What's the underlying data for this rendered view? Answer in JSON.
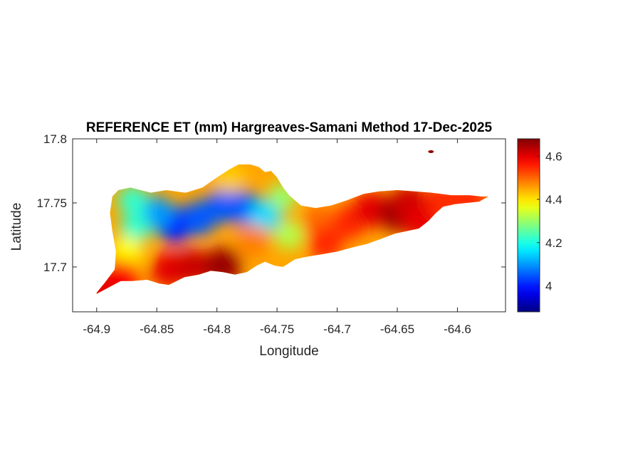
{
  "chart_data": {
    "type": "heatmap",
    "title": "REFERENCE ET (mm) Hargreaves-Samani Method  17-Dec-2025",
    "xlabel": "Longitude",
    "ylabel": "Latitude",
    "xlim": [
      -64.92,
      -64.56
    ],
    "ylim": [
      17.665,
      17.8
    ],
    "xticks": [
      -64.9,
      -64.85,
      -64.8,
      -64.75,
      -64.7,
      -64.65,
      -64.6
    ],
    "xtick_labels": [
      "-64.9",
      "-64.85",
      "-64.8",
      "-64.75",
      "-64.7",
      "-64.65",
      "-64.6"
    ],
    "yticks": [
      17.7,
      17.75,
      17.8
    ],
    "ytick_labels": [
      "17.7",
      "17.75",
      "17.8"
    ],
    "colorbar": {
      "colormap": "jet",
      "range": [
        3.88,
        4.68
      ],
      "ticks": [
        4.0,
        4.2,
        4.4,
        4.6
      ],
      "tick_labels": [
        "4",
        "4.2",
        "4.4",
        "4.6"
      ]
    },
    "island_outline_lonlat": [
      [
        -64.9,
        17.68
      ],
      [
        -64.893,
        17.688
      ],
      [
        -64.885,
        17.698
      ],
      [
        -64.884,
        17.712
      ],
      [
        -64.887,
        17.728
      ],
      [
        -64.889,
        17.742
      ],
      [
        -64.887,
        17.755
      ],
      [
        -64.882,
        17.76
      ],
      [
        -64.872,
        17.762
      ],
      [
        -64.855,
        17.758
      ],
      [
        -64.842,
        17.76
      ],
      [
        -64.826,
        17.758
      ],
      [
        -64.812,
        17.762
      ],
      [
        -64.803,
        17.768
      ],
      [
        -64.79,
        17.776
      ],
      [
        -64.782,
        17.78
      ],
      [
        -64.772,
        17.78
      ],
      [
        -64.765,
        17.778
      ],
      [
        -64.76,
        17.774
      ],
      [
        -64.755,
        17.775
      ],
      [
        -64.75,
        17.77
      ],
      [
        -64.745,
        17.762
      ],
      [
        -64.74,
        17.756
      ],
      [
        -64.73,
        17.748
      ],
      [
        -64.718,
        17.746
      ],
      [
        -64.705,
        17.748
      ],
      [
        -64.692,
        17.752
      ],
      [
        -64.678,
        17.757
      ],
      [
        -64.665,
        17.759
      ],
      [
        -64.65,
        17.76
      ],
      [
        -64.636,
        17.759
      ],
      [
        -64.622,
        17.758
      ],
      [
        -64.605,
        17.756
      ],
      [
        -64.59,
        17.756
      ],
      [
        -64.58,
        17.755
      ],
      [
        -64.574,
        17.755
      ],
      [
        -64.582,
        17.751
      ],
      [
        -64.592,
        17.75
      ],
      [
        -64.602,
        17.749
      ],
      [
        -64.612,
        17.747
      ],
      [
        -64.618,
        17.742
      ],
      [
        -64.624,
        17.736
      ],
      [
        -64.632,
        17.73
      ],
      [
        -64.642,
        17.728
      ],
      [
        -64.652,
        17.726
      ],
      [
        -64.663,
        17.722
      ],
      [
        -64.675,
        17.718
      ],
      [
        -64.688,
        17.715
      ],
      [
        -64.7,
        17.712
      ],
      [
        -64.712,
        17.71
      ],
      [
        -64.725,
        17.708
      ],
      [
        -64.735,
        17.706
      ],
      [
        -64.745,
        17.7
      ],
      [
        -64.752,
        17.701
      ],
      [
        -64.76,
        17.704
      ],
      [
        -64.767,
        17.701
      ],
      [
        -64.775,
        17.696
      ],
      [
        -64.785,
        17.694
      ],
      [
        -64.795,
        17.696
      ],
      [
        -64.805,
        17.697
      ],
      [
        -64.815,
        17.694
      ],
      [
        -64.827,
        17.692
      ],
      [
        -64.84,
        17.686
      ],
      [
        -64.848,
        17.687
      ],
      [
        -64.858,
        17.69
      ],
      [
        -64.87,
        17.689
      ],
      [
        -64.88,
        17.689
      ],
      [
        -64.89,
        17.684
      ],
      [
        -64.9,
        17.679
      ]
    ],
    "island_islet_lonlat": [
      -64.622,
      17.79
    ],
    "value_blobs_lonlat": [
      {
        "lon": -64.835,
        "lat": 17.733,
        "value": 3.98
      },
      {
        "lon": -64.815,
        "lat": 17.738,
        "value": 4.05
      },
      {
        "lon": -64.795,
        "lat": 17.748,
        "value": 4.05
      },
      {
        "lon": -64.778,
        "lat": 17.746,
        "value": 4.05
      },
      {
        "lon": -64.85,
        "lat": 17.742,
        "value": 4.1
      },
      {
        "lon": -64.76,
        "lat": 17.74,
        "value": 4.15
      },
      {
        "lon": -64.868,
        "lat": 17.73,
        "value": 4.22
      },
      {
        "lon": -64.87,
        "lat": 17.752,
        "value": 4.22
      },
      {
        "lon": -64.745,
        "lat": 17.755,
        "value": 4.3
      },
      {
        "lon": -64.74,
        "lat": 17.725,
        "value": 4.32
      },
      {
        "lon": -64.875,
        "lat": 17.712,
        "value": 4.38
      },
      {
        "lon": -64.79,
        "lat": 17.77,
        "value": 4.42
      },
      {
        "lon": -64.77,
        "lat": 17.72,
        "value": 4.48
      },
      {
        "lon": -64.715,
        "lat": 17.735,
        "value": 4.5
      },
      {
        "lon": -64.69,
        "lat": 17.735,
        "value": 4.55
      },
      {
        "lon": -64.71,
        "lat": 17.718,
        "value": 4.55
      },
      {
        "lon": -64.88,
        "lat": 17.692,
        "value": 4.58
      },
      {
        "lon": -64.84,
        "lat": 17.698,
        "value": 4.6
      },
      {
        "lon": -64.82,
        "lat": 17.7,
        "value": 4.62
      },
      {
        "lon": -64.795,
        "lat": 17.701,
        "value": 4.66
      },
      {
        "lon": -64.672,
        "lat": 17.745,
        "value": 4.6
      },
      {
        "lon": -64.65,
        "lat": 17.742,
        "value": 4.66
      },
      {
        "lon": -64.64,
        "lat": 17.75,
        "value": 4.62
      },
      {
        "lon": -64.63,
        "lat": 17.735,
        "value": 4.6
      },
      {
        "lon": -64.612,
        "lat": 17.752,
        "value": 4.55
      },
      {
        "lon": -64.59,
        "lat": 17.753,
        "value": 4.55
      },
      {
        "lon": -64.895,
        "lat": 17.682,
        "value": 4.6
      }
    ]
  }
}
